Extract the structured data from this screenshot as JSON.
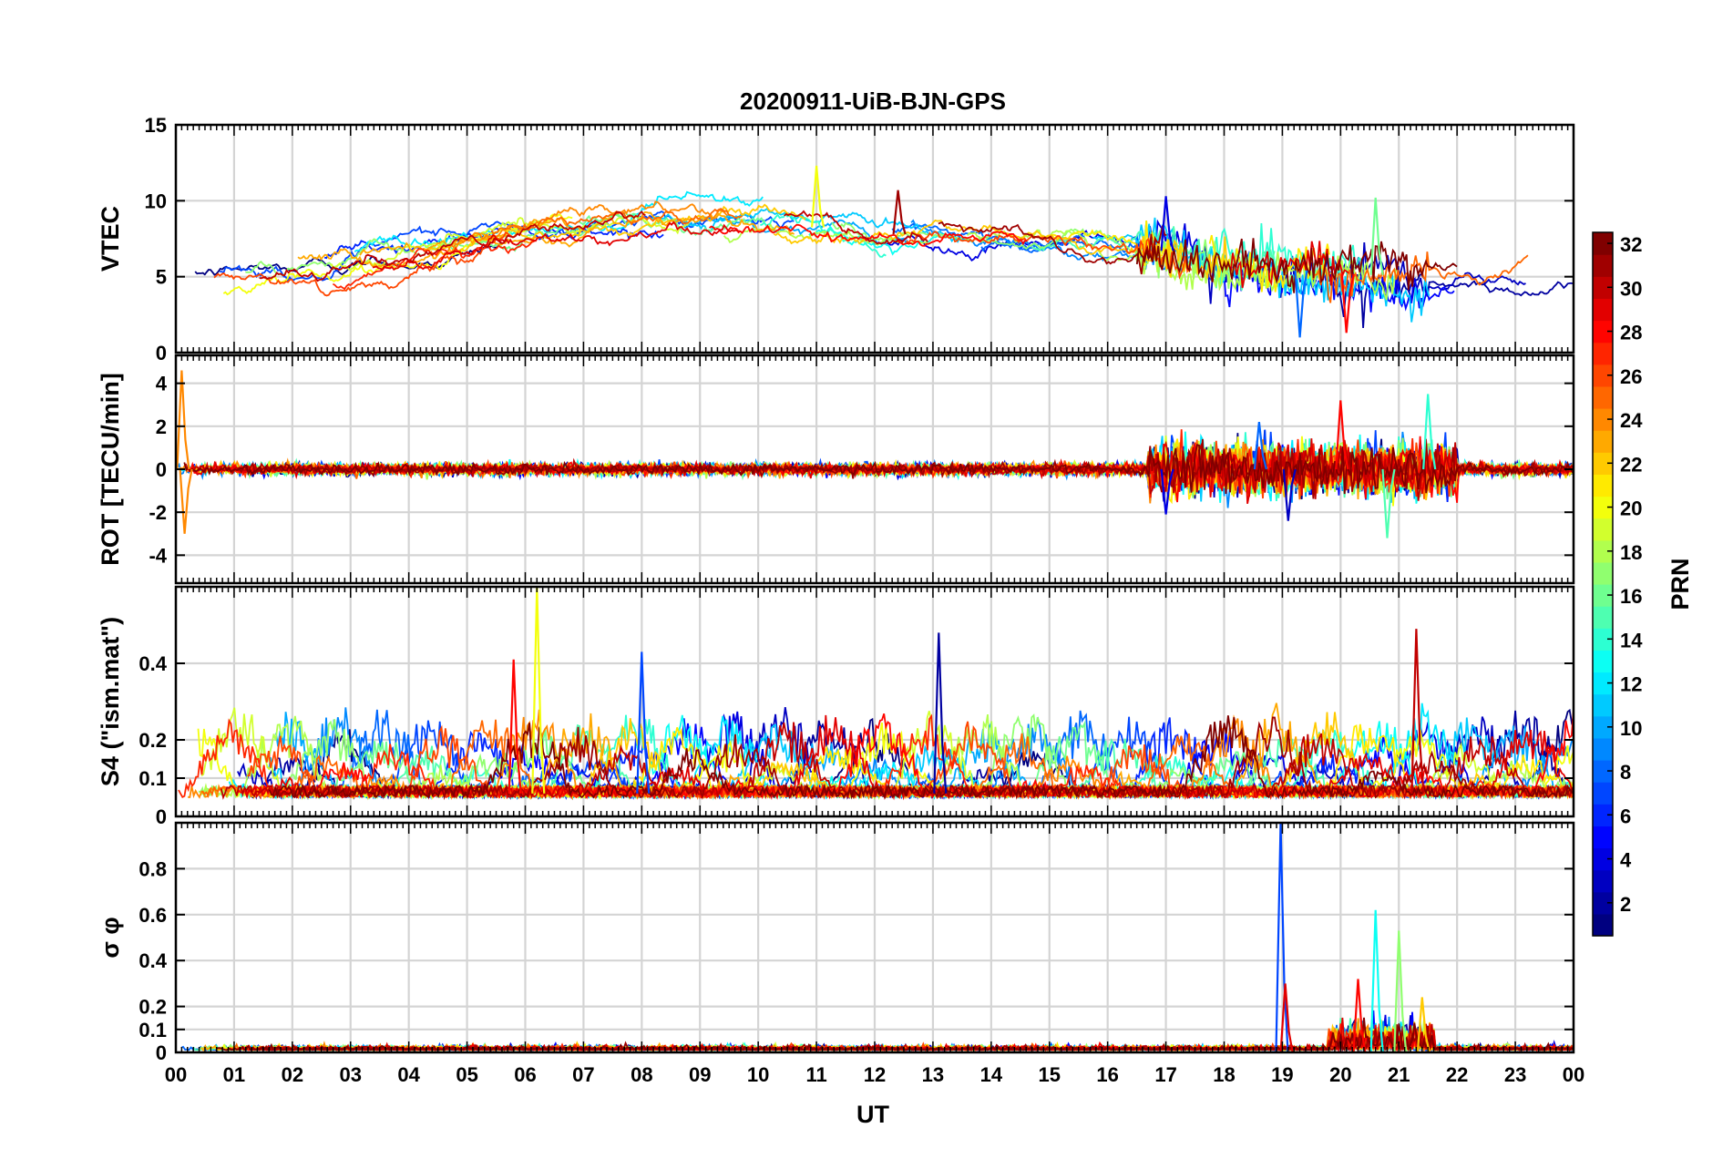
{
  "title": "20200911-UiB-BJN-GPS",
  "xlabel": "UT",
  "x_ticks": [
    "00",
    "01",
    "02",
    "03",
    "04",
    "05",
    "06",
    "07",
    "08",
    "09",
    "10",
    "11",
    "12",
    "13",
    "14",
    "15",
    "16",
    "17",
    "18",
    "19",
    "20",
    "21",
    "22",
    "23",
    "00"
  ],
  "colorbar": {
    "label": "PRN",
    "range": [
      1,
      32
    ],
    "ticks": [
      "2",
      "4",
      "6",
      "8",
      "10",
      "12",
      "14",
      "16",
      "18",
      "20",
      "22",
      "24",
      "26",
      "28",
      "30",
      "32"
    ],
    "colormap": "jet"
  },
  "chart_data": [
    {
      "type": "line",
      "panel": "VTEC",
      "ylabel": "VTEC",
      "ylim": [
        0,
        15
      ],
      "yticks": [
        "0",
        "5",
        "10",
        "15"
      ],
      "xlim_hours": [
        0,
        24
      ],
      "grid": true,
      "series_count": 32,
      "baseline_profile": [
        {
          "ut": 0,
          "value": 5.0
        },
        {
          "ut": 2,
          "value": 5.2
        },
        {
          "ut": 4,
          "value": 6.2
        },
        {
          "ut": 6,
          "value": 7.8
        },
        {
          "ut": 8,
          "value": 8.7
        },
        {
          "ut": 10,
          "value": 8.6
        },
        {
          "ut": 12,
          "value": 7.9
        },
        {
          "ut": 14,
          "value": 7.4
        },
        {
          "ut": 16,
          "value": 7.0
        },
        {
          "ut": 17,
          "value": 6.7
        },
        {
          "ut": 18,
          "value": 5.8
        },
        {
          "ut": 20,
          "value": 5.2
        },
        {
          "ut": 22,
          "value": 4.9
        },
        {
          "ut": 24,
          "value": 4.7
        }
      ],
      "notable": [
        {
          "ut": 11.0,
          "value": 12.3,
          "prn": 20
        },
        {
          "ut": 12.4,
          "value": 10.7,
          "prn": 31
        },
        {
          "ut": 17.0,
          "value": 10.3,
          "prn": 4
        },
        {
          "ut": 19.3,
          "value": 1.0,
          "prn": 8
        },
        {
          "ut": 20.1,
          "value": 1.3,
          "prn": 28
        },
        {
          "ut": 20.6,
          "value": 10.2,
          "prn": 16
        }
      ]
    },
    {
      "type": "line",
      "panel": "ROT",
      "ylabel": "ROT [TECU/min]",
      "ylim": [
        -5.3,
        5.3
      ],
      "yticks": [
        "-4",
        "-2",
        "0",
        "2",
        "4"
      ],
      "grid": true,
      "series_count": 32,
      "notable": [
        {
          "ut": 0.1,
          "value": 4.6,
          "prn": 24
        },
        {
          "ut": 0.15,
          "value": -3.0,
          "prn": 24
        },
        {
          "ut": 17.0,
          "value": -2.1,
          "prn": 4
        },
        {
          "ut": 18.6,
          "value": 2.2,
          "prn": 8
        },
        {
          "ut": 19.1,
          "value": -2.4,
          "prn": 3
        },
        {
          "ut": 20.0,
          "value": 3.2,
          "prn": 28
        },
        {
          "ut": 21.5,
          "value": 3.5,
          "prn": 14
        },
        {
          "ut": 20.8,
          "value": -3.2,
          "prn": 15
        }
      ]
    },
    {
      "type": "line",
      "panel": "S4",
      "ylabel": "S4 (\"ism.mat\")",
      "ylim": [
        0,
        0.6
      ],
      "yticks": [
        "0",
        "0.1",
        "0.2",
        "0.4"
      ],
      "grid": true,
      "series_count": 32,
      "notable": [
        {
          "ut": 6.2,
          "value": 0.6,
          "prn": 20
        },
        {
          "ut": 13.1,
          "value": 0.48,
          "prn": 2
        },
        {
          "ut": 21.3,
          "value": 0.49,
          "prn": 30
        },
        {
          "ut": 8.0,
          "value": 0.43,
          "prn": 7
        },
        {
          "ut": 5.8,
          "value": 0.41,
          "prn": 28
        }
      ]
    },
    {
      "type": "line",
      "panel": "SigmaPhi",
      "ylabel": "σ φ",
      "ylim": [
        0,
        1.0
      ],
      "yticks": [
        "0",
        "0.1",
        "0.2",
        "0.4",
        "0.6",
        "0.8"
      ],
      "grid": true,
      "series_count": 32,
      "notable": [
        {
          "ut": 18.97,
          "value": 1.0,
          "prn": 7
        },
        {
          "ut": 19.05,
          "value": 0.3,
          "prn": 29
        },
        {
          "ut": 20.3,
          "value": 0.32,
          "prn": 28
        },
        {
          "ut": 20.6,
          "value": 0.62,
          "prn": 13
        },
        {
          "ut": 21.0,
          "value": 0.53,
          "prn": 17
        },
        {
          "ut": 21.4,
          "value": 0.24,
          "prn": 22
        }
      ]
    }
  ]
}
